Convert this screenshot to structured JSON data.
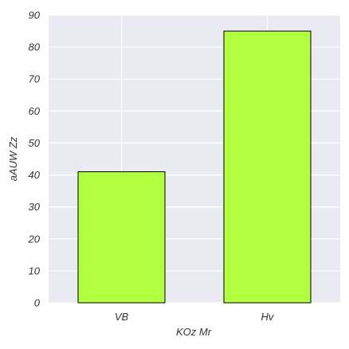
{
  "chart_data": {
    "type": "bar",
    "title": "",
    "xlabel": "KOz Mr",
    "ylabel": "aAUW  Zz",
    "categories": [
      "VB",
      "Hv"
    ],
    "values": [
      41,
      85
    ],
    "ylim": [
      0,
      90
    ],
    "yticks": [
      0,
      10,
      20,
      30,
      40,
      50,
      60,
      70,
      80,
      90
    ],
    "grid": true,
    "legend": "none",
    "colors": {
      "bar_fill": "#b2ff3f",
      "bar_edge": "#000000",
      "plot_background": "#eaeaf2",
      "grid": "#ffffff",
      "text": "#333333"
    }
  }
}
